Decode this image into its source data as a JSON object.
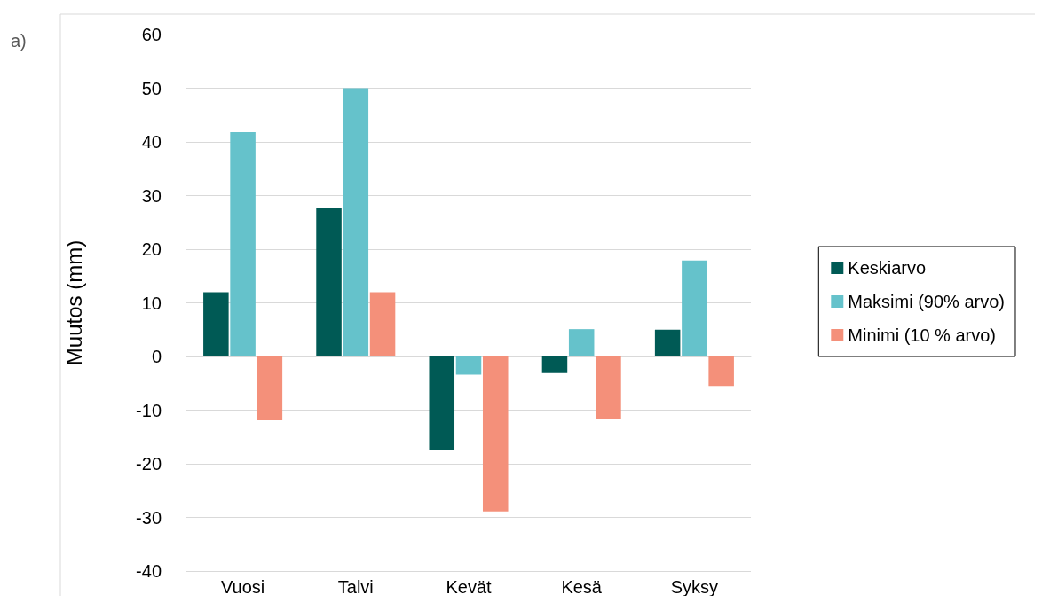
{
  "chart_data": {
    "type": "bar",
    "ylabel": "Muutos (mm)",
    "annotations": [
      "a)"
    ],
    "categories": [
      "Vuosi",
      "Talvi",
      "Kevät",
      "Kesä",
      "Syksy"
    ],
    "series": [
      {
        "name": "Keskiarvo",
        "color": "#005a55",
        "values": [
          12,
          27.7,
          -17.5,
          -3.1,
          5
        ]
      },
      {
        "name": "Maksimi (90% arvo)",
        "color": "#65c2cb",
        "values": [
          41.8,
          50,
          -3.4,
          5.1,
          17.9
        ]
      },
      {
        "name": "Minimi (10 % arvo)",
        "color": "#f4907a",
        "values": [
          -11.9,
          12,
          -28.9,
          -11.6,
          -5.5
        ]
      }
    ],
    "ylim": [
      -40,
      60
    ],
    "yticks": [
      -40,
      -30,
      -20,
      -10,
      0,
      10,
      20,
      30,
      40,
      50,
      60
    ],
    "grid": "y",
    "legend": "right"
  }
}
